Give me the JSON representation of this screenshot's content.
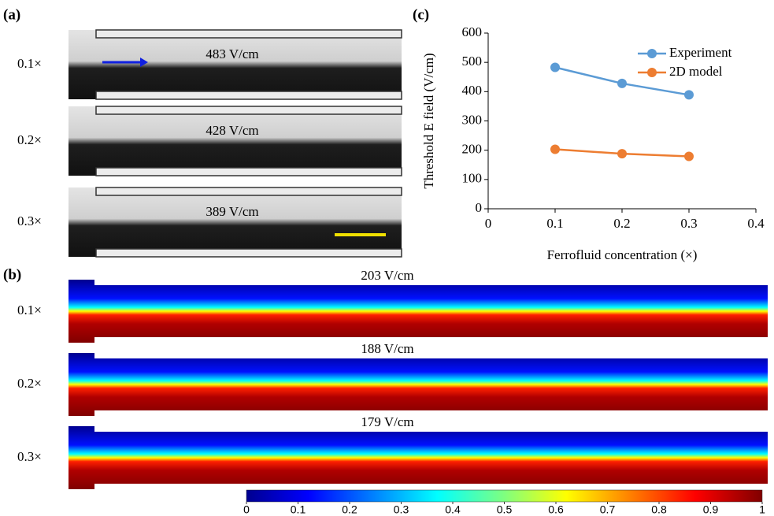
{
  "panel_a": {
    "label": "(a)",
    "rows": [
      {
        "label": "0.1×",
        "field": "483 V/cm"
      },
      {
        "label": "0.2×",
        "field": "428 V/cm"
      },
      {
        "label": "0.3×",
        "field": "389 V/cm"
      }
    ]
  },
  "panel_b": {
    "label": "(b)",
    "rows": [
      {
        "label": "0.1×",
        "field": "203 V/cm"
      },
      {
        "label": "0.2×",
        "field": "188 V/cm"
      },
      {
        "label": "0.3×",
        "field": "179 V/cm"
      }
    ],
    "colorbar": {
      "ticks": [
        0,
        0.1,
        0.2,
        0.3,
        0.4,
        0.5,
        0.6,
        0.7,
        0.8,
        0.9,
        1
      ],
      "lim": [
        0,
        1
      ]
    }
  },
  "chart_data": {
    "type": "line",
    "panel_label": "(c)",
    "x_label": "Ferrofluid concentration (×)",
    "y_label": "Threshold E field (V/cm)",
    "x": [
      0.1,
      0.2,
      0.3
    ],
    "series": [
      {
        "name": "Experiment",
        "color": "#5b9bd5",
        "values": [
          483,
          428,
          389
        ]
      },
      {
        "name": "2D model",
        "color": "#ed7d31",
        "values": [
          203,
          188,
          179
        ]
      }
    ],
    "xlim": [
      0,
      0.4
    ],
    "xticks": [
      0,
      0.1,
      0.2,
      0.3,
      0.4
    ],
    "ylim": [
      0,
      600
    ],
    "yticks": [
      0,
      100,
      200,
      300,
      400,
      500,
      600
    ],
    "grid": false,
    "legend": "top-right"
  }
}
